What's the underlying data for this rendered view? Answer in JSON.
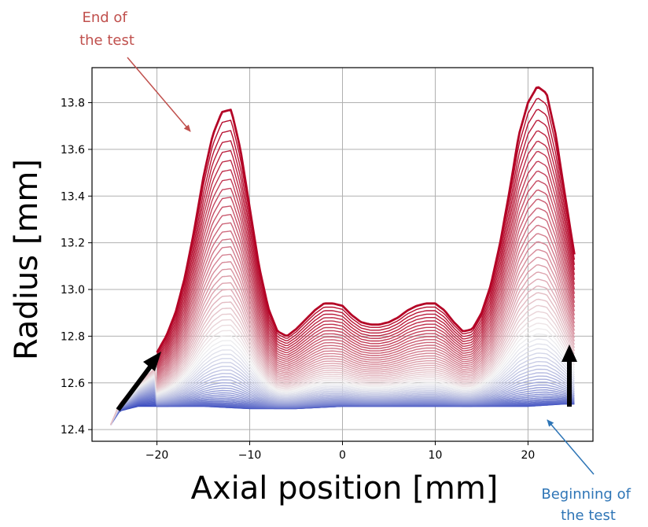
{
  "chart_data": {
    "type": "line",
    "xlabel": "Axial position [mm]",
    "ylabel": "Radius [mm]",
    "xlim": [
      -27,
      27
    ],
    "ylim": [
      12.35,
      13.95
    ],
    "xticks": [
      -20,
      -10,
      0,
      10,
      20
    ],
    "xtick_labels": [
      "−20",
      "−10",
      "0",
      "10",
      "20"
    ],
    "yticks": [
      12.4,
      12.6,
      12.8,
      13.0,
      13.2,
      13.4,
      13.6,
      13.8
    ],
    "ytick_labels": [
      "12.4",
      "12.6",
      "12.8",
      "13.0",
      "13.2",
      "13.4",
      "13.6",
      "13.8"
    ],
    "grid": true,
    "colormap": [
      "#3b4cc0",
      "#f0f0f0",
      "#b40426"
    ],
    "series_count": 60,
    "x_range": [
      -25,
      25
    ],
    "initial_curve": {
      "x": [
        -25,
        -24,
        -22,
        -20,
        -15,
        -10,
        -5,
        0,
        5,
        10,
        15,
        20,
        24,
        25
      ],
      "y": [
        12.42,
        12.48,
        12.5,
        12.5,
        12.5,
        12.49,
        12.49,
        12.5,
        12.5,
        12.5,
        12.5,
        12.5,
        12.51,
        12.51
      ]
    },
    "final_curve": {
      "x": [
        -20,
        -19,
        -18,
        -17,
        -16,
        -15,
        -14,
        -13,
        -12,
        -11,
        -10,
        -9,
        -8,
        -7,
        -6,
        -5,
        -4,
        -3,
        -2,
        -1,
        0,
        1,
        2,
        3,
        4,
        5,
        6,
        7,
        8,
        9,
        10,
        11,
        12,
        13,
        14,
        15,
        16,
        17,
        18,
        19,
        20,
        21,
        22,
        23,
        24,
        25
      ],
      "y": [
        12.73,
        12.8,
        12.9,
        13.05,
        13.25,
        13.48,
        13.66,
        13.76,
        13.77,
        13.6,
        13.35,
        13.1,
        12.92,
        12.82,
        12.8,
        12.83,
        12.87,
        12.91,
        12.94,
        12.94,
        12.93,
        12.89,
        12.86,
        12.85,
        12.85,
        12.86,
        12.88,
        12.91,
        12.93,
        12.94,
        12.94,
        12.91,
        12.86,
        12.82,
        12.83,
        12.9,
        13.02,
        13.2,
        13.42,
        13.66,
        13.8,
        13.87,
        13.84,
        13.66,
        13.4,
        13.15
      ]
    },
    "annotations": [
      {
        "text_lines": [
          "End of",
          "the test"
        ],
        "color": "#c0504d"
      },
      {
        "text_lines": [
          "Beginning of",
          "the test"
        ],
        "color": "#2e75b6"
      }
    ]
  }
}
